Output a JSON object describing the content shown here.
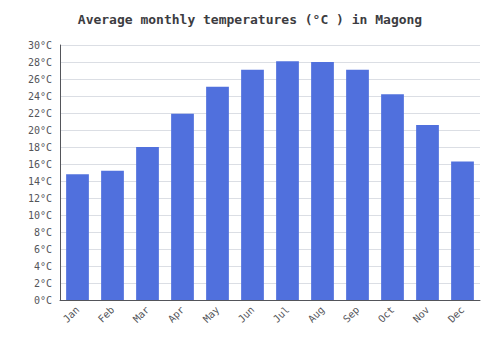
{
  "chart_data": {
    "type": "bar",
    "title": "Average monthly temperatures (°C ) in Magong",
    "categories": [
      "Jan",
      "Feb",
      "Mar",
      "Apr",
      "May",
      "Jun",
      "Jul",
      "Aug",
      "Sep",
      "Oct",
      "Nov",
      "Dec"
    ],
    "values": [
      14.8,
      15.2,
      18.0,
      21.9,
      25.1,
      27.1,
      28.1,
      28.0,
      27.1,
      24.2,
      20.6,
      16.3
    ],
    "ylim": [
      0,
      30
    ],
    "yticks": [
      {
        "value": 0,
        "label": "0°C"
      },
      {
        "value": 2,
        "label": "2°C"
      },
      {
        "value": 4,
        "label": "4°C"
      },
      {
        "value": 6,
        "label": "6°C"
      },
      {
        "value": 8,
        "label": "8°C"
      },
      {
        "value": 10,
        "label": "10°C"
      },
      {
        "value": 12,
        "label": "12°C"
      },
      {
        "value": 14,
        "label": "14°C"
      },
      {
        "value": 16,
        "label": "16°C"
      },
      {
        "value": 18,
        "label": "18°C"
      },
      {
        "value": 20,
        "label": "20°C"
      },
      {
        "value": 22,
        "label": "22°C"
      },
      {
        "value": 24,
        "label": "24°C"
      },
      {
        "value": 26,
        "label": "26°C"
      },
      {
        "value": 28,
        "label": "28°C"
      },
      {
        "value": 30,
        "label": "30°C"
      }
    ],
    "grid": true
  }
}
